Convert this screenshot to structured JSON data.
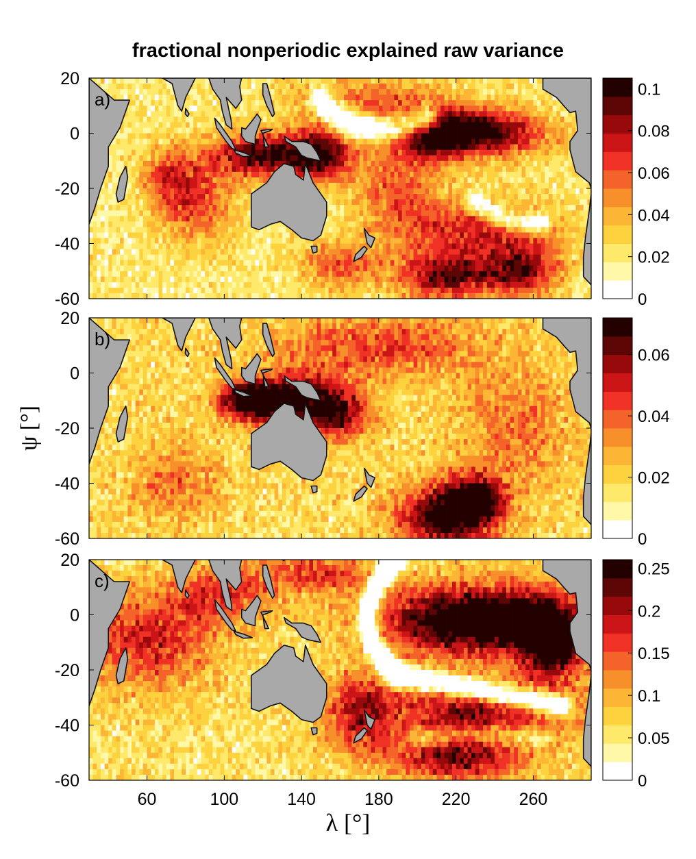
{
  "figure": {
    "title": "fractional nonperiodic explained raw variance",
    "ylabel": "ψ [°]",
    "xlabel": "λ [°]"
  },
  "colors": {
    "land": "#a9a9a9",
    "coast": "#111111",
    "colormap": [
      "#ffffff",
      "#fff8a8",
      "#fee96a",
      "#fdd23f",
      "#fcb534",
      "#f7902a",
      "#f4642a",
      "#f03125",
      "#cc1517",
      "#97090b",
      "#5c0606",
      "#230101"
    ]
  },
  "chart_data": [
    {
      "type": "heatmap",
      "panel_label": "a)",
      "x_range": [
        30,
        290
      ],
      "y_range": [
        -60,
        20
      ],
      "x_ticks": [
        60,
        100,
        140,
        180,
        220,
        260
      ],
      "y_ticks": [
        20,
        0,
        -20,
        -40,
        -60
      ],
      "show_x_tick_labels": false,
      "colorbar": {
        "range": [
          0,
          0.105
        ],
        "ticks": [
          0,
          0.02,
          0.04,
          0.06,
          0.08,
          0.1
        ],
        "labels": [
          "0",
          "0.02",
          "0.04",
          "0.06",
          "0.08",
          "0.1"
        ]
      },
      "features": [
        {
          "x": 225,
          "y": 0,
          "sx": 28,
          "sy": 6,
          "value": 0.095
        },
        {
          "x": 205,
          "y": -2,
          "sx": 12,
          "sy": 7,
          "value": 0.025
        },
        {
          "x": 120,
          "y": -8,
          "sx": 20,
          "sy": 6,
          "value": 0.075
        },
        {
          "x": 150,
          "y": -8,
          "sx": 12,
          "sy": 7,
          "value": 0.065
        },
        {
          "x": 85,
          "y": -25,
          "sx": 14,
          "sy": 10,
          "value": 0.045
        },
        {
          "x": 70,
          "y": -15,
          "sx": 10,
          "sy": 8,
          "value": 0.03
        },
        {
          "x": 175,
          "y": 12,
          "sx": 30,
          "sy": 6,
          "value": 0.035
        },
        {
          "x": 230,
          "y": -35,
          "sx": 30,
          "sy": 8,
          "value": 0.05
        },
        {
          "x": 215,
          "y": -52,
          "sx": 18,
          "sy": 6,
          "value": 0.07
        },
        {
          "x": 255,
          "y": -50,
          "sx": 14,
          "sy": 7,
          "value": 0.06
        },
        {
          "x": 160,
          "y": -48,
          "sx": 15,
          "sy": 6,
          "value": 0.04
        },
        {
          "x": 190,
          "y": -20,
          "sx": 15,
          "sy": 10,
          "value": 0.04
        }
      ],
      "bands": [
        {
          "x1": 150,
          "y1": 12,
          "x2": 170,
          "y2": -5,
          "x3": 205,
          "y3": 5,
          "width": 4,
          "value": -0.07
        },
        {
          "x1": 230,
          "y1": -25,
          "x2": 250,
          "y2": -35,
          "x3": 265,
          "y3": -32,
          "width": 3,
          "value": -0.05
        }
      ],
      "background": 0.02
    },
    {
      "type": "heatmap",
      "panel_label": "b)",
      "x_range": [
        30,
        290
      ],
      "y_range": [
        -60,
        20
      ],
      "x_ticks": [
        60,
        100,
        140,
        180,
        220,
        260
      ],
      "y_ticks": [
        20,
        0,
        -20,
        -40,
        -60
      ],
      "show_x_tick_labels": false,
      "colorbar": {
        "range": [
          0,
          0.072
        ],
        "ticks": [
          0,
          0.02,
          0.04,
          0.06
        ],
        "labels": [
          "0",
          "0.02",
          "0.04",
          "0.06"
        ]
      },
      "features": [
        {
          "x": 115,
          "y": -10,
          "sx": 12,
          "sy": 5,
          "value": 0.068
        },
        {
          "x": 140,
          "y": -10,
          "sx": 15,
          "sy": 7,
          "value": 0.045
        },
        {
          "x": 160,
          "y": -15,
          "sx": 12,
          "sy": 7,
          "value": 0.035
        },
        {
          "x": 215,
          "y": -52,
          "sx": 18,
          "sy": 8,
          "value": 0.055
        },
        {
          "x": 230,
          "y": -45,
          "sx": 10,
          "sy": 6,
          "value": 0.045
        },
        {
          "x": 180,
          "y": 10,
          "sx": 40,
          "sy": 8,
          "value": 0.025
        },
        {
          "x": 250,
          "y": -20,
          "sx": 20,
          "sy": 15,
          "value": 0.02
        },
        {
          "x": 75,
          "y": -40,
          "sx": 15,
          "sy": 10,
          "value": 0.02
        }
      ],
      "bands": [],
      "background": 0.018
    },
    {
      "type": "heatmap",
      "panel_label": "c)",
      "x_range": [
        30,
        290
      ],
      "y_range": [
        -60,
        20
      ],
      "x_ticks": [
        60,
        100,
        140,
        180,
        220,
        260
      ],
      "y_ticks": [
        20,
        0,
        -20,
        -40,
        -60
      ],
      "show_x_tick_labels": true,
      "colorbar": {
        "range": [
          0,
          0.26
        ],
        "ticks": [
          0,
          0.05,
          0.1,
          0.15,
          0.2,
          0.25
        ],
        "labels": [
          "0",
          "0.05",
          "0.1",
          "0.15",
          "0.2",
          "0.25"
        ]
      },
      "features": [
        {
          "x": 230,
          "y": -2,
          "sx": 35,
          "sy": 9,
          "value": 0.25
        },
        {
          "x": 270,
          "y": -10,
          "sx": 12,
          "sy": 10,
          "value": 0.2
        },
        {
          "x": 60,
          "y": -10,
          "sx": 25,
          "sy": 12,
          "value": 0.12
        },
        {
          "x": 100,
          "y": 8,
          "sx": 20,
          "sy": 8,
          "value": 0.1
        },
        {
          "x": 230,
          "y": -35,
          "sx": 35,
          "sy": 8,
          "value": 0.15
        },
        {
          "x": 220,
          "y": -52,
          "sx": 25,
          "sy": 6,
          "value": 0.15
        },
        {
          "x": 150,
          "y": 15,
          "sx": 20,
          "sy": 5,
          "value": 0.1
        },
        {
          "x": 170,
          "y": -35,
          "sx": 12,
          "sy": 10,
          "value": 0.12
        }
      ],
      "bands": [
        {
          "x1": 190,
          "y1": 20,
          "x2": 158,
          "y2": -2,
          "x3": 190,
          "y3": -22,
          "width": 3,
          "value": -0.25
        },
        {
          "x1": 190,
          "y1": -22,
          "x2": 240,
          "y2": -28,
          "x3": 275,
          "y3": -33,
          "width": 3,
          "value": -0.22
        },
        {
          "x1": 200,
          "y1": -45,
          "x2": 230,
          "y2": -42,
          "x3": 265,
          "y3": -45,
          "width": 3,
          "value": -0.08
        }
      ],
      "background": 0.06
    }
  ]
}
